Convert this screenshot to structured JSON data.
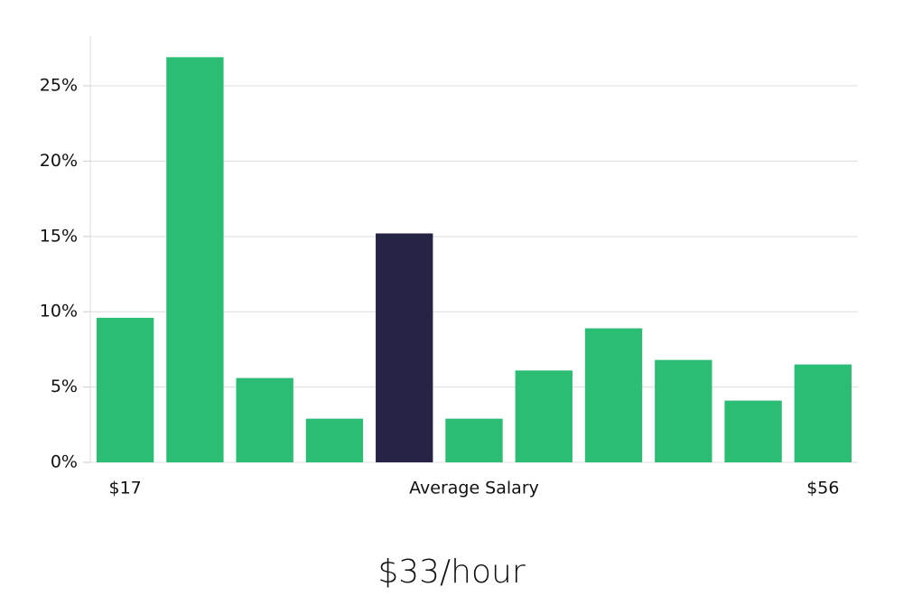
{
  "chart_data": {
    "type": "bar",
    "categories": [
      "$17",
      null,
      null,
      null,
      null,
      null,
      null,
      null,
      null,
      null,
      "$56"
    ],
    "values": [
      9.6,
      26.9,
      5.6,
      2.9,
      15.2,
      2.9,
      6.1,
      8.9,
      6.8,
      4.1,
      6.5
    ],
    "colors": [
      "#2bbd74",
      "#2bbd74",
      "#2bbd74",
      "#2bbd74",
      "#262444",
      "#2bbd74",
      "#2bbd74",
      "#2bbd74",
      "#2bbd74",
      "#2bbd74",
      "#2bbd74"
    ],
    "x_label": "Average Salary",
    "subtitle": "$33/hour",
    "ylim": [
      0,
      28.3
    ],
    "yticks": [
      {
        "value": 0,
        "label": "0%"
      },
      {
        "value": 5,
        "label": "5%"
      },
      {
        "value": 10,
        "label": "10%"
      },
      {
        "value": 15,
        "label": "15%"
      },
      {
        "value": 20,
        "label": "20%"
      },
      {
        "value": 25,
        "label": "25%"
      }
    ],
    "grid": true
  }
}
